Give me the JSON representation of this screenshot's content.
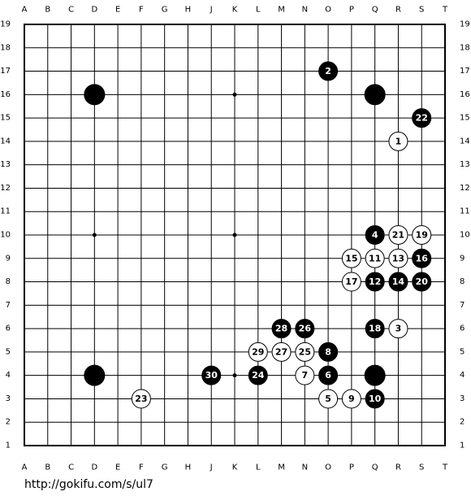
{
  "board": {
    "columns": [
      "A",
      "B",
      "C",
      "D",
      "E",
      "F",
      "G",
      "H",
      "J",
      "K",
      "L",
      "M",
      "N",
      "O",
      "P",
      "Q",
      "R",
      "S",
      "T"
    ],
    "rows": [
      19,
      18,
      17,
      16,
      15,
      14,
      13,
      12,
      11,
      10,
      9,
      8,
      7,
      6,
      5,
      4,
      3,
      2,
      1
    ],
    "stones": [
      {
        "col": "D",
        "row": 16,
        "color": "black"
      },
      {
        "col": "Q",
        "row": 16,
        "color": "black"
      },
      {
        "col": "D",
        "row": 4,
        "color": "black"
      },
      {
        "col": "Q",
        "row": 4,
        "color": "black"
      },
      {
        "col": "R",
        "row": 14,
        "color": "white",
        "move": 1
      },
      {
        "col": "O",
        "row": 17,
        "color": "black",
        "move": 2
      },
      {
        "col": "R",
        "row": 6,
        "color": "white",
        "move": 3
      },
      {
        "col": "Q",
        "row": 10,
        "color": "black",
        "move": 4
      },
      {
        "col": "O",
        "row": 3,
        "color": "white",
        "move": 5
      },
      {
        "col": "O",
        "row": 4,
        "color": "black",
        "move": 6
      },
      {
        "col": "N",
        "row": 4,
        "color": "white",
        "move": 7
      },
      {
        "col": "O",
        "row": 5,
        "color": "black",
        "move": 8
      },
      {
        "col": "P",
        "row": 3,
        "color": "white",
        "move": 9
      },
      {
        "col": "Q",
        "row": 3,
        "color": "black",
        "move": 10
      },
      {
        "col": "Q",
        "row": 9,
        "color": "white",
        "move": 11
      },
      {
        "col": "Q",
        "row": 8,
        "color": "black",
        "move": 12
      },
      {
        "col": "R",
        "row": 9,
        "color": "white",
        "move": 13
      },
      {
        "col": "R",
        "row": 8,
        "color": "black",
        "move": 14
      },
      {
        "col": "P",
        "row": 9,
        "color": "white",
        "move": 15
      },
      {
        "col": "S",
        "row": 9,
        "color": "black",
        "move": 16
      },
      {
        "col": "P",
        "row": 8,
        "color": "white",
        "move": 17
      },
      {
        "col": "Q",
        "row": 6,
        "color": "black",
        "move": 18
      },
      {
        "col": "S",
        "row": 10,
        "color": "white",
        "move": 19
      },
      {
        "col": "S",
        "row": 8,
        "color": "black",
        "move": 20
      },
      {
        "col": "R",
        "row": 10,
        "color": "white",
        "move": 21
      },
      {
        "col": "S",
        "row": 15,
        "color": "black",
        "move": 22
      },
      {
        "col": "F",
        "row": 3,
        "color": "white",
        "move": 23
      },
      {
        "col": "L",
        "row": 4,
        "color": "black",
        "move": 24
      },
      {
        "col": "N",
        "row": 5,
        "color": "white",
        "move": 25
      },
      {
        "col": "N",
        "row": 6,
        "color": "black",
        "move": 26
      },
      {
        "col": "M",
        "row": 5,
        "color": "white",
        "move": 27
      },
      {
        "col": "M",
        "row": 6,
        "color": "black",
        "move": 28
      },
      {
        "col": "L",
        "row": 5,
        "color": "white",
        "move": 29
      },
      {
        "col": "J",
        "row": 4,
        "color": "black",
        "move": 30
      }
    ]
  },
  "footer": {
    "url": "http://gokifu.com/s/ul7"
  }
}
